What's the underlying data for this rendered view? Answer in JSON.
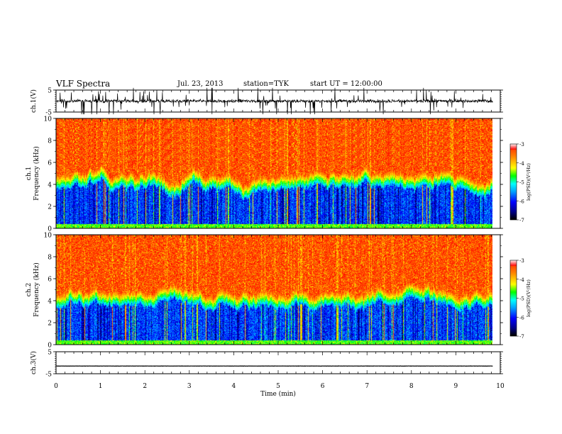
{
  "header": {
    "title": "VLF Spectra",
    "date": "Jul. 23, 2013",
    "station": "station=TYK",
    "start_time": "start UT = 12:00:00"
  },
  "chart_data": [
    {
      "type": "line",
      "panel": "ch1-waveform",
      "ylabel": "ch.1(V)",
      "ylim": [
        -5,
        5
      ],
      "yticks": [
        "5",
        "-5"
      ],
      "xlim": [
        0,
        10
      ],
      "description_values": {
        "baseline": 0.0,
        "noise_amplitude": 1.2,
        "spike_max": 6.0
      }
    },
    {
      "type": "heatmap",
      "panel": "ch1-spectrogram",
      "ylabel": "ch.1\nFrequency (kHz)",
      "ylabel_line1": "ch.1",
      "ylabel_line2": "Frequency (kHz)",
      "ylim": [
        0,
        10
      ],
      "yticks": [
        "0",
        "2",
        "4",
        "6",
        "8",
        "10"
      ],
      "xlim": [
        0,
        9.83
      ],
      "colorbar": {
        "label": "log(PSD)(V²/Hz)",
        "range": [
          -7,
          -3
        ],
        "ticks": [
          "-3",
          "-4",
          "-5",
          "-6",
          "-7"
        ]
      }
    },
    {
      "type": "heatmap",
      "panel": "ch2-spectrogram",
      "ylabel_line1": "ch.2",
      "ylabel_line2": "Frequency (kHz)",
      "ylim": [
        0,
        10
      ],
      "yticks": [
        "0",
        "2",
        "4",
        "6",
        "8",
        "10"
      ],
      "xlim": [
        0,
        9.83
      ],
      "colorbar": {
        "label": "log(PSD)(V²/Hz)",
        "range": [
          -7,
          -3
        ],
        "ticks": [
          "-3",
          "-4",
          "-5",
          "-6",
          "-7"
        ]
      }
    },
    {
      "type": "line",
      "panel": "ch3-waveform",
      "ylabel": "ch.3(V)",
      "ylim": [
        -5,
        5
      ],
      "yticks": [
        "5",
        "-5"
      ],
      "xlim": [
        0,
        10
      ],
      "description_values": {
        "baseline": -1.5,
        "noise_amplitude": 0.1
      }
    }
  ],
  "xaxis": {
    "label": "Time (min)",
    "ticks": [
      "0",
      "1",
      "2",
      "3",
      "4",
      "5",
      "6",
      "7",
      "8",
      "9",
      "10"
    ],
    "range": [
      0,
      10
    ]
  },
  "colors": {
    "colormap": [
      "#000000",
      "#00008b",
      "#0000ff",
      "#00a0ff",
      "#00ffff",
      "#00ff00",
      "#ffff00",
      "#ff8000",
      "#ff0000",
      "#ffffff"
    ]
  }
}
